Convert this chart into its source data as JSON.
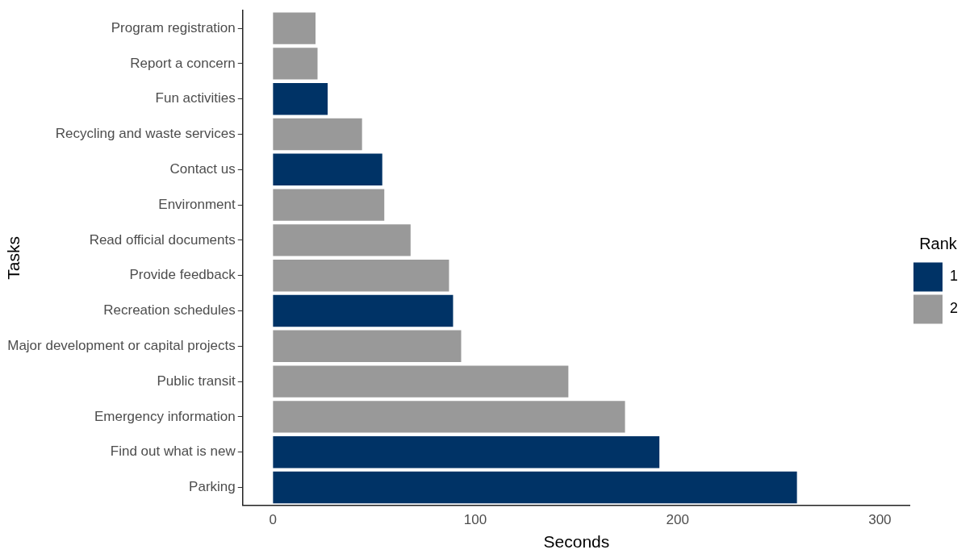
{
  "chart_data": {
    "type": "bar",
    "orientation": "horizontal",
    "xlabel": "Seconds",
    "ylabel": "Tasks",
    "legend_title": "Rank",
    "legend": "right",
    "categories": [
      "Program registration",
      "Report a concern",
      "Fun activities",
      "Recycling and waste services",
      "Contact us",
      "Environment",
      "Read official documents",
      "Provide feedback",
      "Recreation schedules",
      "Major development or capital projects",
      "Public transit",
      "Emergency information",
      "Find out what is new",
      "Parking"
    ],
    "series": [
      {
        "name": "1",
        "color": "#003366",
        "values": [
          null,
          null,
          27,
          null,
          54,
          null,
          null,
          null,
          89,
          null,
          null,
          null,
          191,
          259
        ]
      },
      {
        "name": "2",
        "color": "#999999",
        "values": [
          21,
          22,
          null,
          44,
          null,
          55,
          68,
          87,
          null,
          93,
          146,
          174,
          null,
          null
        ]
      }
    ],
    "xlim": [
      -15,
      315
    ],
    "xticks": [
      0,
      100,
      200,
      300
    ],
    "grid": false
  }
}
